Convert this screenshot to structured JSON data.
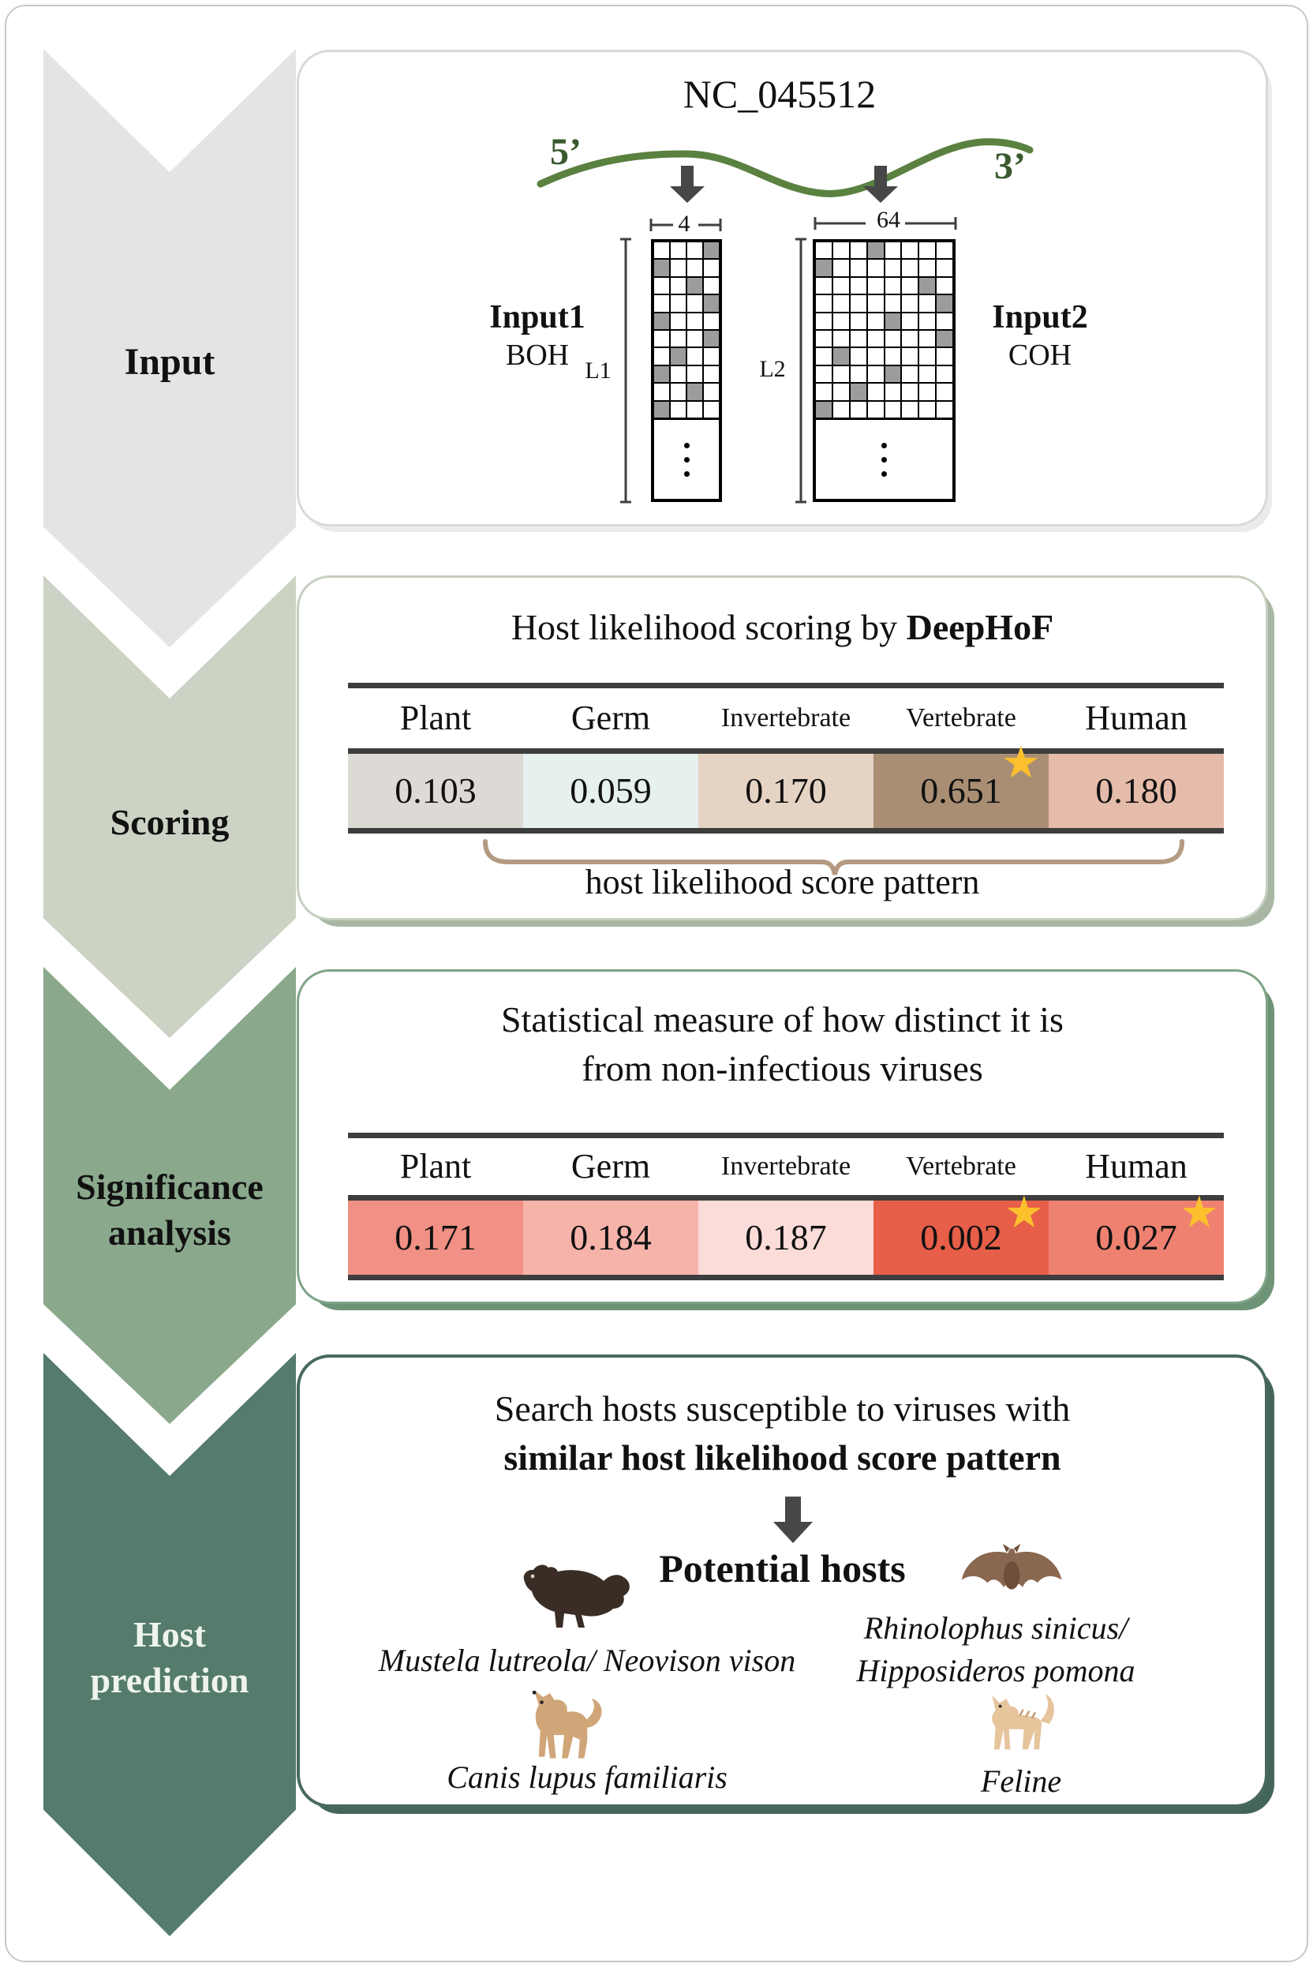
{
  "figure": {
    "accession": "NC_045512",
    "five_prime": "5’",
    "three_prime": "3’"
  },
  "stages": [
    {
      "id": "input",
      "lines": [
        "Input"
      ]
    },
    {
      "id": "scoring",
      "lines": [
        "Scoring"
      ]
    },
    {
      "id": "significance-analysis",
      "lines": [
        "Significance",
        "analysis"
      ]
    },
    {
      "id": "host-prediction",
      "lines": [
        "Host",
        "prediction"
      ]
    }
  ],
  "input_panel": {
    "input1": {
      "label": "Input1",
      "encoding": "BOH",
      "width_label": "4",
      "length_label": "L1",
      "grid": {
        "rows": 10,
        "cols": 4,
        "filled": [
          [
            0,
            3
          ],
          [
            1,
            0
          ],
          [
            2,
            2
          ],
          [
            3,
            3
          ],
          [
            4,
            0
          ],
          [
            5,
            3
          ],
          [
            6,
            1
          ],
          [
            7,
            0
          ],
          [
            8,
            2
          ],
          [
            9,
            0
          ]
        ]
      }
    },
    "input2": {
      "label": "Input2",
      "encoding": "COH",
      "width_label": "64",
      "length_label": "L2",
      "grid": {
        "rows": 10,
        "cols": 8,
        "filled": [
          [
            0,
            3
          ],
          [
            1,
            0
          ],
          [
            2,
            6
          ],
          [
            3,
            7
          ],
          [
            4,
            4
          ],
          [
            5,
            7
          ],
          [
            6,
            1
          ],
          [
            7,
            4
          ],
          [
            8,
            2
          ],
          [
            9,
            0
          ]
        ]
      }
    }
  },
  "scoring_panel": {
    "title_prefix": "Host likelihood scoring by ",
    "title_emphasis": "DeepHoF",
    "columns": [
      "Plant",
      "Germ",
      "Invertebrate",
      "Vertebrate",
      "Human"
    ],
    "scores": [
      "0.103",
      "0.059",
      "0.170",
      "0.651",
      "0.180"
    ],
    "starred_columns": [
      "Vertebrate"
    ],
    "caption": "host likelihood score pattern"
  },
  "significance_panel": {
    "title_lines": [
      "Statistical measure of how distinct it is",
      "from non-infectious viruses"
    ],
    "columns": [
      "Plant",
      "Germ",
      "Invertebrate",
      "Vertebrate",
      "Human"
    ],
    "p_values": [
      "0.171",
      "0.184",
      "0.187",
      "0.002",
      "0.027"
    ],
    "starred_columns": [
      "Vertebrate",
      "Human"
    ]
  },
  "host_panel": {
    "search_line": "Search hosts susceptible to viruses with",
    "search_line_bold": "similar host likelihood score pattern",
    "subtitle": "Potential hosts",
    "hosts": [
      {
        "icon": "mink",
        "name": "Mustela lutreola/ Neovison vison",
        "lines": [
          "Mustela lutreola/ Neovison vison"
        ]
      },
      {
        "icon": "bat",
        "name": "Rhinolophus sinicus/ Hipposideros pomona",
        "lines": [
          "Rhinolophus sinicus/",
          "Hipposideros pomona"
        ]
      },
      {
        "icon": "dog",
        "name": "Canis lupus familiaris",
        "lines": [
          "Canis lupus familiaris"
        ]
      },
      {
        "icon": "cat",
        "name": "Feline",
        "lines": [
          "Feline"
        ]
      }
    ]
  },
  "icons": {
    "star": "★"
  },
  "colors": {
    "stage_fills": [
      "#e4e4e3",
      "#ccd3c5",
      "#8aa88c",
      "#547b6b"
    ],
    "stage_text_light": "#eef3ee",
    "score_cells": [
      "#dddad6",
      "#e6f0ee",
      "#e5d3c3",
      "#a98e73",
      "#e5bbaa"
    ],
    "p_value_cells": [
      "#f19084",
      "#f6b3aa",
      "#fbdcd8",
      "#e75e49",
      "#ee8170"
    ],
    "star": "#fcc02d",
    "genome": "#5a8140",
    "terminus_text": "#3a5a2e",
    "flow_arrow": "#474747",
    "dimension_line": "#3f3f3f",
    "table_rule": "#3d3d3d",
    "brace": "#b49a81",
    "matrix_cell": "#9c9c9c",
    "mink": "#3a2d25",
    "bat": "#8a6750",
    "bat_body": "#6d4e3a",
    "dog": "#d0a678",
    "cat": "#e6c49c",
    "cat_stripe": "#c89d72",
    "animal_detail": "#222222"
  }
}
